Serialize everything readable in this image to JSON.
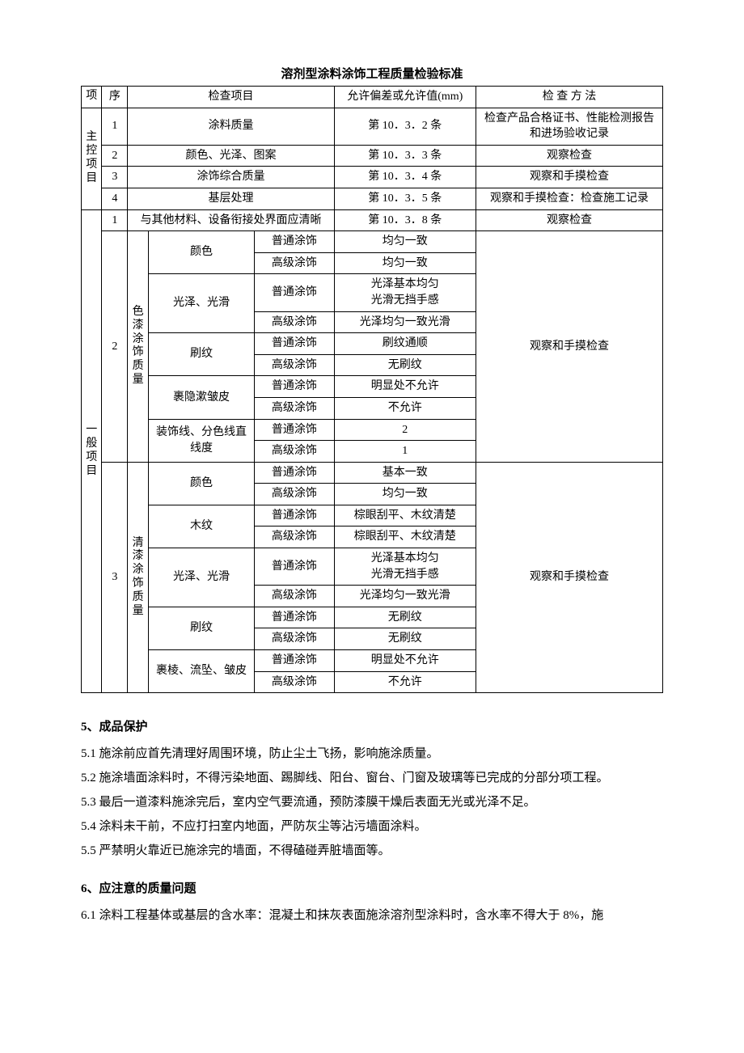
{
  "table_title": "溶剂型涂料涂饰工程质量检验标准",
  "headers": {
    "col_proj": "项",
    "col_seq": "序",
    "col_item": "检查项目",
    "col_tol": "允许偏差或允许值(mm)",
    "col_method": "检 查 方 法"
  },
  "main_label": "主控项目",
  "general_label": "一般项目",
  "main_rows": [
    {
      "seq": "1",
      "item": "涂料质量",
      "tol": "第 10．3．2 条",
      "method": "检查产品合格证书、性能检测报告和进场验收记录"
    },
    {
      "seq": "2",
      "item": "颜色、光泽、图案",
      "tol": "第 10．3．3 条",
      "method": "观察检查"
    },
    {
      "seq": "3",
      "item": "涂饰综合质量",
      "tol": "第 10．3．4 条",
      "method": "观察和手摸检查"
    },
    {
      "seq": "4",
      "item": "基层处理",
      "tol": "第 10．3．5 条",
      "method": "观察和手摸检查：检查施工记录"
    }
  ],
  "gen1": {
    "seq": "1",
    "item": "与其他材料、设备衔接处界面应清晰",
    "tol": "第 10．3．8 条",
    "method": "观察检查"
  },
  "gen2": {
    "seq": "2",
    "group_name": "色漆涂饰质量",
    "method": "观察和手摸检查",
    "subs": [
      {
        "name": "颜色",
        "rows": [
          {
            "grade": "普通涂饰",
            "val": "均匀一致"
          },
          {
            "grade": "高级涂饰",
            "val": "均匀一致"
          }
        ]
      },
      {
        "name": "光泽、光滑",
        "rows": [
          {
            "grade": "普通涂饰",
            "val": "光泽基本均匀\n光滑无挡手感"
          },
          {
            "grade": "高级涂饰",
            "val": "光泽均匀一致光滑"
          }
        ]
      },
      {
        "name": "刷纹",
        "rows": [
          {
            "grade": "普通涂饰",
            "val": "刷纹通顺"
          },
          {
            "grade": "高级涂饰",
            "val": "无刷纹"
          }
        ]
      },
      {
        "name": "裹隐漱皱皮",
        "rows": [
          {
            "grade": "普通涂饰",
            "val": "明显处不允许"
          },
          {
            "grade": "高级涂饰",
            "val": "不允许"
          }
        ]
      },
      {
        "name": "装饰线、分色线直线度",
        "rows": [
          {
            "grade": "普通涂饰",
            "val": "2"
          },
          {
            "grade": "高级涂饰",
            "val": "1"
          }
        ]
      }
    ]
  },
  "gen3": {
    "seq": "3",
    "group_name": "清漆涂饰质量",
    "method": "观察和手摸检查",
    "subs": [
      {
        "name": "颜色",
        "rows": [
          {
            "grade": "普通涂饰",
            "val": "基本一致"
          },
          {
            "grade": "高级涂饰",
            "val": "均匀一致"
          }
        ]
      },
      {
        "name": "木纹",
        "rows": [
          {
            "grade": "普通涂饰",
            "val": "棕眼刮平、木纹清楚"
          },
          {
            "grade": "高级涂饰",
            "val": "棕眼刮平、木纹清楚"
          }
        ]
      },
      {
        "name": "光泽、光滑",
        "rows": [
          {
            "grade": "普通涂饰",
            "val": "光泽基本均匀\n光滑无挡手感"
          },
          {
            "grade": "高级涂饰",
            "val": "光泽均匀一致光滑"
          }
        ]
      },
      {
        "name": "刷纹",
        "rows": [
          {
            "grade": "普通涂饰",
            "val": "无刷纹"
          },
          {
            "grade": "高级涂饰",
            "val": "无刷纹"
          }
        ]
      },
      {
        "name": "裹棱、流坠、皱皮",
        "rows": [
          {
            "grade": "普通涂饰",
            "val": "明显处不允许"
          },
          {
            "grade": "高级涂饰",
            "val": "不允许"
          }
        ]
      }
    ]
  },
  "sec5_title": "5、成品保护",
  "sec5": [
    "5.1 施涂前应首先清理好周围环境，防止尘土飞扬，影响施涂质量。",
    "5.2 施涂墙面涂料时，不得污染地面、踢脚线、阳台、窗台、门窗及玻璃等已完成的分部分项工程。",
    "5.3 最后一道漆料施涂完后，室内空气要流通，预防漆膜干燥后表面无光或光泽不足。",
    "5.4 涂料未干前，不应打扫室内地面，严防灰尘等沾污墙面涂料。",
    "5.5 严禁明火靠近已施涂完的墙面，不得磕碰弄脏墙面等。"
  ],
  "sec6_title": "6、应注意的质量问题",
  "sec6": [
    "6.1 涂料工程基体或基层的含水率：混凝土和抹灰表面施涂溶剂型涂料时，含水率不得大于 8%，施"
  ]
}
